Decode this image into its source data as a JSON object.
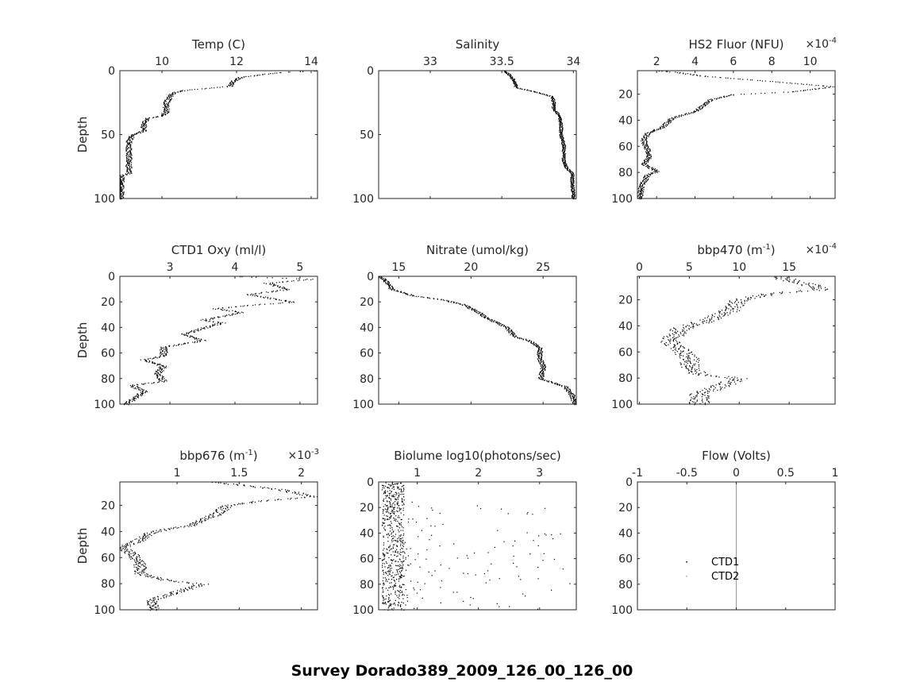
{
  "suptitle": "Survey Dorado389_2009_126_00_126_00",
  "chart_data": [
    {
      "type": "scatter",
      "title": "Temp (C)",
      "ylabel": "Depth",
      "exponent": "",
      "xlim": [
        8.87,
        14.17
      ],
      "ylim": [
        0,
        100
      ],
      "xticks": [
        10,
        12,
        14
      ],
      "xtick_labels": [
        "10",
        "12",
        "14"
      ],
      "yticks": [
        0,
        50,
        100
      ],
      "ytick_labels": [
        "0",
        "50",
        "100"
      ],
      "profile": [
        [
          14.1,
          0
        ],
        [
          13.2,
          1
        ],
        [
          12.6,
          3
        ],
        [
          12.1,
          5
        ],
        [
          11.9,
          8
        ],
        [
          11.8,
          12
        ],
        [
          10.6,
          15
        ],
        [
          10.3,
          17
        ],
        [
          10.2,
          20
        ],
        [
          10.1,
          25
        ],
        [
          10.1,
          32
        ],
        [
          10.0,
          35
        ],
        [
          9.6,
          37
        ],
        [
          9.5,
          42
        ],
        [
          9.5,
          47
        ],
        [
          9.2,
          50
        ],
        [
          9.1,
          55
        ],
        [
          9.1,
          68
        ],
        [
          9.1,
          80
        ],
        [
          8.9,
          82
        ],
        [
          8.9,
          90
        ],
        [
          8.88,
          100
        ]
      ],
      "spread": 0.08
    },
    {
      "type": "scatter",
      "title": "Salinity",
      "ylabel": "",
      "exponent": "",
      "xlim": [
        32.64,
        34.02
      ],
      "ylim": [
        0,
        100
      ],
      "xticks": [
        33,
        33.5,
        34
      ],
      "xtick_labels": [
        "33",
        "33.5",
        "34"
      ],
      "yticks": [
        0,
        50,
        100
      ],
      "ytick_labels": [
        "0",
        "50",
        "100"
      ],
      "profile": [
        [
          33.52,
          0
        ],
        [
          33.55,
          3
        ],
        [
          33.58,
          7
        ],
        [
          33.6,
          13
        ],
        [
          33.72,
          16
        ],
        [
          33.85,
          20
        ],
        [
          33.86,
          25
        ],
        [
          33.86,
          30
        ],
        [
          33.9,
          35
        ],
        [
          33.91,
          42
        ],
        [
          33.91,
          50
        ],
        [
          33.93,
          58
        ],
        [
          33.93,
          70
        ],
        [
          33.95,
          76
        ],
        [
          33.99,
          80
        ],
        [
          33.99,
          90
        ],
        [
          34.0,
          100
        ]
      ],
      "spread": 0.012
    },
    {
      "type": "scatter",
      "title": "HS2 Fluor (NFU)",
      "ylabel": "",
      "exponent": "×10",
      "exponent_power": "-4",
      "xlim": [
        1.0,
        11.3
      ],
      "ylim": [
        2,
        100
      ],
      "xticks": [
        2,
        4,
        6,
        8,
        10
      ],
      "xtick_labels": [
        "2",
        "4",
        "6",
        "8",
        "10"
      ],
      "yticks": [
        20,
        40,
        60,
        80,
        100
      ],
      "ytick_labels": [
        "20",
        "40",
        "60",
        "80",
        "100"
      ],
      "profile": [
        [
          2.2,
          2
        ],
        [
          3.0,
          3
        ],
        [
          4.5,
          6
        ],
        [
          8.0,
          10
        ],
        [
          11.2,
          14
        ],
        [
          9.0,
          18
        ],
        [
          6.0,
          20
        ],
        [
          4.8,
          24
        ],
        [
          4.0,
          33
        ],
        [
          2.8,
          38
        ],
        [
          2.3,
          45
        ],
        [
          1.5,
          50
        ],
        [
          1.3,
          55
        ],
        [
          1.5,
          62
        ],
        [
          1.6,
          68
        ],
        [
          1.3,
          73
        ],
        [
          2.0,
          79
        ],
        [
          1.5,
          82
        ],
        [
          1.2,
          90
        ],
        [
          1.1,
          100
        ]
      ],
      "spread": 0.15
    },
    {
      "type": "scatter",
      "title": "CTD1 Oxy (ml/l)",
      "ylabel": "Depth",
      "exponent": "",
      "xlim": [
        2.23,
        5.27
      ],
      "ylim": [
        0,
        100
      ],
      "xticks": [
        3,
        4,
        5
      ],
      "xtick_labels": [
        "3",
        "4",
        "5"
      ],
      "yticks": [
        0,
        20,
        40,
        60,
        80,
        100
      ],
      "ytick_labels": [
        "0",
        "20",
        "40",
        "60",
        "80",
        "100"
      ],
      "profile": [
        [
          4.1,
          0
        ],
        [
          5.2,
          2
        ],
        [
          4.5,
          5
        ],
        [
          4.8,
          10
        ],
        [
          4.2,
          14
        ],
        [
          4.9,
          20
        ],
        [
          4.3,
          22
        ],
        [
          3.7,
          25
        ],
        [
          4.1,
          28
        ],
        [
          3.5,
          34
        ],
        [
          3.8,
          36
        ],
        [
          3.2,
          45
        ],
        [
          3.5,
          50
        ],
        [
          2.9,
          55
        ],
        [
          2.9,
          62
        ],
        [
          2.6,
          65
        ],
        [
          2.9,
          70
        ],
        [
          2.8,
          76
        ],
        [
          2.9,
          82
        ],
        [
          2.4,
          85
        ],
        [
          2.6,
          90
        ],
        [
          2.3,
          100
        ]
      ],
      "spread": 0.06
    },
    {
      "type": "scatter",
      "title": "Nitrate (umol/kg)",
      "ylabel": "",
      "exponent": "",
      "xlim": [
        13.6,
        27.3
      ],
      "ylim": [
        0,
        100
      ],
      "xticks": [
        15,
        20,
        25
      ],
      "xtick_labels": [
        "15",
        "20",
        "25"
      ],
      "yticks": [
        0,
        20,
        40,
        60,
        80,
        100
      ],
      "ytick_labels": [
        "0",
        "20",
        "40",
        "60",
        "80",
        "100"
      ],
      "profile": [
        [
          13.7,
          0
        ],
        [
          14.2,
          5
        ],
        [
          14.5,
          10
        ],
        [
          16.0,
          15
        ],
        [
          18.0,
          18
        ],
        [
          19.5,
          22
        ],
        [
          20.5,
          28
        ],
        [
          21.0,
          32
        ],
        [
          22.5,
          40
        ],
        [
          23.0,
          47
        ],
        [
          24.0,
          50
        ],
        [
          24.8,
          56
        ],
        [
          24.7,
          63
        ],
        [
          25.0,
          70
        ],
        [
          24.8,
          80
        ],
        [
          26.5,
          86
        ],
        [
          27.0,
          93
        ],
        [
          27.2,
          100
        ]
      ],
      "spread": 0.18
    },
    {
      "type": "scatter",
      "title": "bbp470 (m",
      "title_sup": "-1",
      "title_end": ")",
      "ylabel": "",
      "exponent": "×10",
      "exponent_power": "-4",
      "xlim": [
        -0.2,
        19.6
      ],
      "ylim": [
        2,
        100
      ],
      "xticks": [
        0,
        5,
        10,
        15
      ],
      "xtick_labels": [
        "0",
        "5",
        "10",
        "15"
      ],
      "yticks": [
        20,
        40,
        60,
        80,
        100
      ],
      "ytick_labels": [
        "20",
        "40",
        "60",
        "80",
        "100"
      ],
      "profile": [
        [
          14,
          2
        ],
        [
          15,
          5
        ],
        [
          17,
          8
        ],
        [
          18,
          12
        ],
        [
          13,
          15
        ],
        [
          10,
          20
        ],
        [
          9,
          28
        ],
        [
          7,
          35
        ],
        [
          4,
          42
        ],
        [
          3,
          52
        ],
        [
          4,
          58
        ],
        [
          5,
          65
        ],
        [
          5,
          72
        ],
        [
          6,
          77
        ],
        [
          10,
          80
        ],
        [
          8,
          86
        ],
        [
          6,
          92
        ],
        [
          6,
          100
        ]
      ],
      "spread": 1.0
    },
    {
      "type": "scatter",
      "title": "bbp676 (m",
      "title_sup": "-1",
      "title_end": ")",
      "ylabel": "Depth",
      "exponent": "×10",
      "exponent_power": "-3",
      "xlim": [
        0.54,
        2.13
      ],
      "ylim": [
        2,
        100
      ],
      "xticks": [
        1,
        1.5,
        2
      ],
      "xtick_labels": [
        "1",
        "1.5",
        "2"
      ],
      "yticks": [
        20,
        40,
        60,
        80,
        100
      ],
      "ytick_labels": [
        "20",
        "40",
        "60",
        "80",
        "100"
      ],
      "profile": [
        [
          1.3,
          2
        ],
        [
          1.6,
          5
        ],
        [
          1.85,
          8
        ],
        [
          2.1,
          13
        ],
        [
          1.7,
          16
        ],
        [
          1.4,
          20
        ],
        [
          1.3,
          27
        ],
        [
          1.1,
          35
        ],
        [
          0.8,
          40
        ],
        [
          0.7,
          46
        ],
        [
          0.55,
          52
        ],
        [
          0.65,
          58
        ],
        [
          0.7,
          65
        ],
        [
          0.7,
          72
        ],
        [
          0.9,
          77
        ],
        [
          1.2,
          80
        ],
        [
          1.0,
          86
        ],
        [
          0.8,
          92
        ],
        [
          0.8,
          100
        ]
      ],
      "spread": 0.05
    },
    {
      "type": "scatter",
      "title": "Biolume log10(photons/sec)",
      "ylabel": "",
      "exponent": "",
      "xlim": [
        0.37,
        3.6
      ],
      "ylim": [
        0,
        100
      ],
      "xticks": [
        1,
        2,
        3
      ],
      "xtick_labels": [
        "1",
        "2",
        "3"
      ],
      "yticks": [
        0,
        20,
        40,
        60,
        80,
        100
      ],
      "ytick_labels": [
        "0",
        "20",
        "40",
        "60",
        "80",
        "100"
      ],
      "profile": [
        [
          0.6,
          0
        ],
        [
          0.6,
          100
        ]
      ],
      "spread": 0.18,
      "tail_max": 3.5
    },
    {
      "type": "scatter",
      "title": "Flow (Volts)",
      "ylabel": "",
      "exponent": "",
      "xlim": [
        -1,
        1
      ],
      "ylim": [
        0,
        100
      ],
      "xticks": [
        -1,
        -0.5,
        0,
        0.5,
        1
      ],
      "xtick_labels": [
        "-1",
        "-0.5",
        "0",
        "0.5",
        "1"
      ],
      "yticks": [
        0,
        20,
        40,
        60,
        80,
        100
      ],
      "ytick_labels": [
        "0",
        "20",
        "40",
        "60",
        "80",
        "100"
      ],
      "zero_line": 0,
      "legend": [
        {
          "label": "CTD1",
          "color": "#000000"
        },
        {
          "label": "CTD2",
          "color": "#999999"
        }
      ],
      "profile": []
    }
  ]
}
